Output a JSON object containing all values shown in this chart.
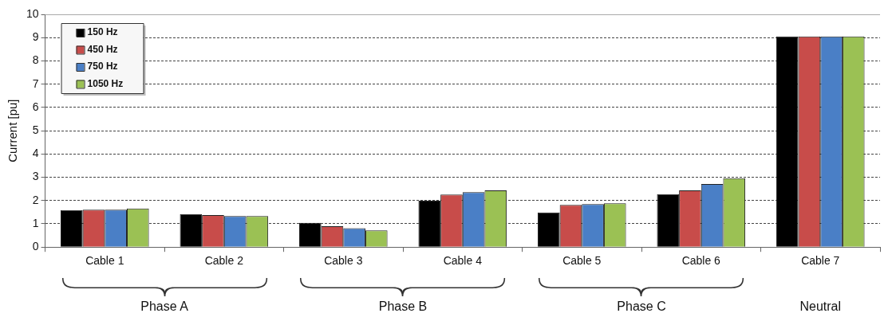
{
  "chart_data": {
    "type": "bar",
    "ylabel": "Current [pu]",
    "categories": [
      "Cable 1",
      "Cable 2",
      "Cable 3",
      "Cable 4",
      "Cable 5",
      "Cable 6",
      "Cable 7"
    ],
    "series": [
      {
        "name": "150 Hz",
        "color": "#000000",
        "values": [
          1.59,
          1.42,
          1.04,
          1.99,
          1.49,
          2.27,
          9.05
        ]
      },
      {
        "name": "450 Hz",
        "color": "#c84c4a",
        "values": [
          1.61,
          1.38,
          0.9,
          2.26,
          1.81,
          2.44,
          9.05
        ]
      },
      {
        "name": "750 Hz",
        "color": "#4a7fc6",
        "values": [
          1.61,
          1.33,
          0.81,
          2.36,
          1.85,
          2.71,
          9.05
        ]
      },
      {
        "name": "1050 Hz",
        "color": "#9bc154",
        "values": [
          1.66,
          1.33,
          0.72,
          2.44,
          1.88,
          2.96,
          9.05
        ]
      }
    ],
    "ylim": [
      0,
      10
    ],
    "yticks": [
      0,
      1,
      2,
      3,
      4,
      5,
      6,
      7,
      8,
      9,
      10
    ],
    "grid": "y",
    "legend": "top left",
    "annotations": [
      "Phase A",
      "Phase B",
      "Phase C",
      "Neutral"
    ]
  }
}
